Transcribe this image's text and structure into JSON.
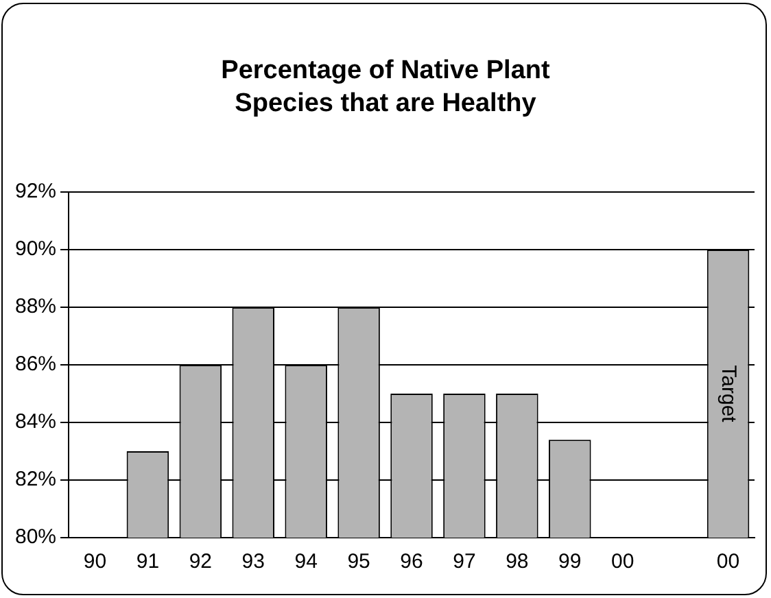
{
  "chart_data": {
    "type": "bar",
    "title": "Percentage of Native Plant Species that are Healthy",
    "categories": [
      "90",
      "91",
      "92",
      "93",
      "94",
      "95",
      "96",
      "97",
      "98",
      "99",
      "00",
      null,
      "00"
    ],
    "values": [
      null,
      83,
      86,
      88,
      86,
      88,
      85,
      85,
      85,
      83.4,
      null,
      null,
      90
    ],
    "color": "#b4b4b4",
    "ylim": [
      80,
      92
    ],
    "yticks": [
      {
        "value": 80,
        "label": "80%"
      },
      {
        "value": 82,
        "label": "82%"
      },
      {
        "value": 84,
        "label": "84%"
      },
      {
        "value": 86,
        "label": "86%"
      },
      {
        "value": 88,
        "label": "88%"
      },
      {
        "value": 90,
        "label": "90%"
      },
      {
        "value": 92,
        "label": "92%"
      }
    ],
    "grid": "y",
    "legend": false,
    "annotations": [
      "Target"
    ]
  }
}
